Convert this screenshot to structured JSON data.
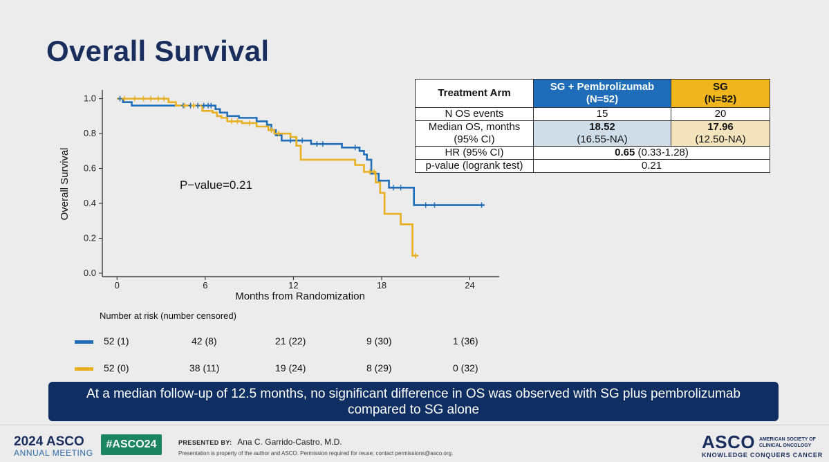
{
  "slide": {
    "title": "Overall Survival",
    "banner": "At a median follow-up of 12.5 months, no significant difference in OS was observed with SG plus pembrolizumab compared to SG alone"
  },
  "chart_data": {
    "type": "line",
    "subtype": "kaplan-meier step curve",
    "title": "",
    "xlabel": "Months from Randomization",
    "ylabel": "Overall Survival",
    "xlim": [
      -1,
      26
    ],
    "ylim": [
      -0.02,
      1.05
    ],
    "xticks": [
      0,
      6,
      12,
      18,
      24
    ],
    "yticks": [
      "0.0",
      "0.2",
      "0.4",
      "0.6",
      "0.8",
      "1.0"
    ],
    "annotation": "P−value=0.21",
    "grid": false,
    "series": [
      {
        "name": "SG + Pembrolizumab",
        "color": "#1f6db8",
        "steps": [
          [
            0,
            1.0
          ],
          [
            0.4,
            0.98
          ],
          [
            0.8,
            0.98
          ],
          [
            1.0,
            0.96
          ],
          [
            4.2,
            0.96
          ],
          [
            6.5,
            0.96
          ],
          [
            6.7,
            0.94
          ],
          [
            7.0,
            0.92
          ],
          [
            7.5,
            0.9
          ],
          [
            8.3,
            0.89
          ],
          [
            9.5,
            0.87
          ],
          [
            10.2,
            0.85
          ],
          [
            10.5,
            0.82
          ],
          [
            10.8,
            0.79
          ],
          [
            11.2,
            0.76
          ],
          [
            12.7,
            0.76
          ],
          [
            13.2,
            0.74
          ],
          [
            14.8,
            0.74
          ],
          [
            15.3,
            0.72
          ],
          [
            16.0,
            0.72
          ],
          [
            16.5,
            0.7
          ],
          [
            16.8,
            0.68
          ],
          [
            17.0,
            0.65
          ],
          [
            17.3,
            0.57
          ],
          [
            17.8,
            0.53
          ],
          [
            18.5,
            0.49
          ],
          [
            19.8,
            0.49
          ],
          [
            20.2,
            0.39
          ],
          [
            25.0,
            0.39
          ]
        ],
        "censor_x": [
          0.2,
          4.5,
          5.0,
          5.5,
          5.9,
          6.2,
          6.4,
          11.8,
          12.6,
          13.6,
          14.0,
          16.2,
          18.8,
          19.3,
          21.0,
          21.6,
          24.8
        ]
      },
      {
        "name": "SG",
        "color": "#e8b020",
        "steps": [
          [
            0,
            1.0
          ],
          [
            3.5,
            0.98
          ],
          [
            4.0,
            0.96
          ],
          [
            5.8,
            0.93
          ],
          [
            6.5,
            0.92
          ],
          [
            6.8,
            0.9
          ],
          [
            7.1,
            0.89
          ],
          [
            7.5,
            0.87
          ],
          [
            8.5,
            0.86
          ],
          [
            9.5,
            0.84
          ],
          [
            10.3,
            0.82
          ],
          [
            10.7,
            0.8
          ],
          [
            11.8,
            0.78
          ],
          [
            12.2,
            0.73
          ],
          [
            12.5,
            0.65
          ],
          [
            15.8,
            0.65
          ],
          [
            16.2,
            0.62
          ],
          [
            16.8,
            0.58
          ],
          [
            17.6,
            0.52
          ],
          [
            17.9,
            0.46
          ],
          [
            18.2,
            0.34
          ],
          [
            19.0,
            0.34
          ],
          [
            19.3,
            0.28
          ],
          [
            19.8,
            0.28
          ],
          [
            20.1,
            0.1
          ],
          [
            20.5,
            0.1
          ]
        ],
        "censor_x": [
          0.5,
          1.2,
          1.8,
          2.3,
          2.8,
          3.2,
          4.6,
          5.2,
          7.8,
          8.2,
          9.0,
          10.5,
          11.0,
          17.2,
          17.5,
          20.3
        ]
      }
    ]
  },
  "summary_table": {
    "header": {
      "label": "Treatment Arm",
      "sgp": "SG + Pembrolizumab",
      "sgp_n": "(N=52)",
      "sg": "SG",
      "sg_n": "(N=52)"
    },
    "events": {
      "label": "N OS events",
      "sgp": "15",
      "sg": "20"
    },
    "median": {
      "label1": "Median OS, months",
      "label2": "(95% CI)",
      "sgp": "18.52",
      "sgp_ci": "(16.55-NA)",
      "sg": "17.96",
      "sg_ci": "(12.50-NA)"
    },
    "hr": {
      "label": "HR (95% CI)",
      "value": "0.65",
      "ci": "(0.33-1.28)"
    },
    "pvalue": {
      "label": "p-value (logrank test)",
      "value": "0.21"
    }
  },
  "at_risk": {
    "title": "Number at risk (number censored)",
    "rows": [
      {
        "color": "#1f6db8",
        "values": [
          "52 (1)",
          "42 (8)",
          "21 (22)",
          "9 (30)",
          "1 (36)"
        ]
      },
      {
        "color": "#e8b020",
        "values": [
          "52 (0)",
          "38 (11)",
          "19 (24)",
          "8 (29)",
          "0 (32)"
        ]
      }
    ]
  },
  "footer": {
    "year_label": "2024 ASCO",
    "meeting_label": "ANNUAL MEETING",
    "hashtag": "#ASCO24",
    "presented_by_label": "PRESENTED BY:",
    "presenter": "Ana C. Garrido-Castro, M.D.",
    "disclaimer": "Presentation is property of the author and ASCO. Permission required for reuse; contact permissions@asco.org.",
    "logo_text": "ASCO",
    "logo_sub": "AMERICAN SOCIETY OF CLINICAL ONCOLOGY",
    "logo_tagline": "KNOWLEDGE CONQUERS CANCER"
  }
}
